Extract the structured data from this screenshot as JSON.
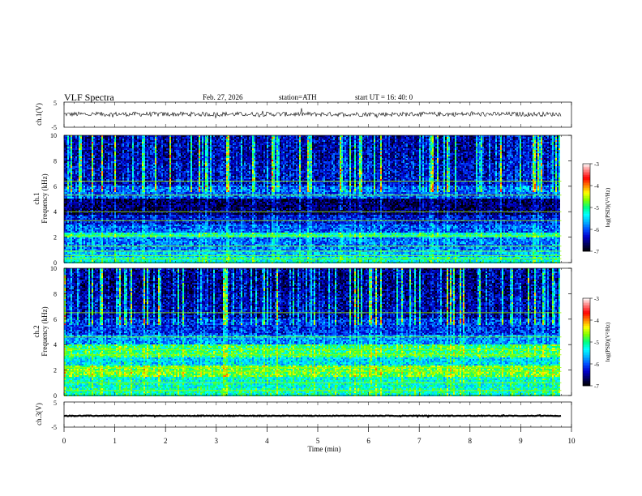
{
  "header": {
    "title": "VLF  Spectra",
    "date": "Feb. 27, 2026",
    "station": "station=ATH",
    "start": "start  UT  =   16: 40: 0"
  },
  "colors": {
    "trace": "#000000",
    "colormap": [
      "#000000",
      "#000060",
      "#0000cc",
      "#0050ff",
      "#00b4ff",
      "#00ffff",
      "#00ff80",
      "#80ff00",
      "#ffff00",
      "#ff8000",
      "#ff0000",
      "#ff7a7a",
      "#ffffff"
    ]
  },
  "chart_data": [
    {
      "type": "line",
      "ylabel": "ch.1(V)",
      "ylim": [
        -5,
        5
      ],
      "yticks": [
        "5",
        "-5"
      ],
      "xlim": [
        0,
        10
      ],
      "x_end_min": 9.8,
      "series": [
        {
          "baseline": 0.2,
          "noise_amplitude": 0.9
        }
      ]
    },
    {
      "type": "heatmap",
      "ylabel": "ch.1\nFrequency (kHz)",
      "ylim": [
        0,
        10
      ],
      "yticks": [
        "0",
        "2",
        "4",
        "6",
        "8",
        "10"
      ],
      "xlim": [
        0,
        10
      ],
      "x_end_min": 9.8,
      "colorbar": {
        "label": "log(PSD)(V²/Hz)",
        "ticks": [
          "-3",
          "-4",
          "-5",
          "-6",
          "-7"
        ],
        "range": [
          -7,
          -3
        ]
      },
      "bands": [
        {
          "f": [
            0.0,
            0.5
          ],
          "level": -5.3
        },
        {
          "f": [
            0.5,
            1.0
          ],
          "level": -5.6
        },
        {
          "f": [
            1.0,
            2.0
          ],
          "level": -5.9
        },
        {
          "f": [
            2.0,
            2.4
          ],
          "level": -5.2
        },
        {
          "f": [
            2.4,
            3.0
          ],
          "level": -6.0
        },
        {
          "f": [
            3.0,
            3.7
          ],
          "level": -6.3
        },
        {
          "f": [
            3.7,
            5.0
          ],
          "level": -6.7
        },
        {
          "f": [
            5.0,
            6.0
          ],
          "level": -6.0
        },
        {
          "f": [
            6.0,
            8.0
          ],
          "level": -6.4
        },
        {
          "f": [
            8.0,
            10.0
          ],
          "level": -6.5
        }
      ],
      "lines_khz": [
        0.3,
        0.55,
        0.9,
        1.3,
        2.1,
        3.3,
        4.0,
        5.3,
        6.4
      ]
    },
    {
      "type": "heatmap",
      "ylabel": "ch.2\nFrequency (kHz)",
      "ylim": [
        0,
        10
      ],
      "yticks": [
        "0",
        "2",
        "4",
        "6",
        "8",
        "10"
      ],
      "xlim": [
        0,
        10
      ],
      "x_end_min": 9.8,
      "colorbar": {
        "label": "log(PSD)(V²/Hz)",
        "ticks": [
          "-3",
          "-4",
          "-5",
          "-6",
          "-7"
        ],
        "range": [
          -7,
          -3
        ]
      },
      "bands": [
        {
          "f": [
            0.0,
            0.6
          ],
          "level": -5.2
        },
        {
          "f": [
            0.6,
            1.5
          ],
          "level": -5.3
        },
        {
          "f": [
            1.5,
            2.3
          ],
          "level": -4.8
        },
        {
          "f": [
            2.3,
            3.0
          ],
          "level": -5.5
        },
        {
          "f": [
            3.0,
            4.0
          ],
          "level": -5.0
        },
        {
          "f": [
            4.0,
            4.8
          ],
          "level": -5.8
        },
        {
          "f": [
            4.8,
            6.0
          ],
          "level": -6.2
        },
        {
          "f": [
            6.0,
            8.0
          ],
          "level": -6.5
        },
        {
          "f": [
            8.0,
            10.0
          ],
          "level": -6.6
        }
      ],
      "lines_khz": [
        0.4,
        1.0,
        1.9,
        2.2,
        3.2,
        3.6,
        4.6,
        6.5
      ]
    },
    {
      "type": "line",
      "ylabel": "ch.3(V)",
      "ylim": [
        -5,
        5
      ],
      "yticks": [
        "5",
        "-5"
      ],
      "xlim": [
        0,
        10
      ],
      "x_end_min": 9.8,
      "xlabel": "Time  (min)",
      "xticks": [
        "0",
        "1",
        "2",
        "3",
        "4",
        "5",
        "6",
        "7",
        "8",
        "9",
        "10"
      ],
      "series": [
        {
          "baseline": -0.5,
          "noise_amplitude": 0.15
        }
      ]
    }
  ]
}
